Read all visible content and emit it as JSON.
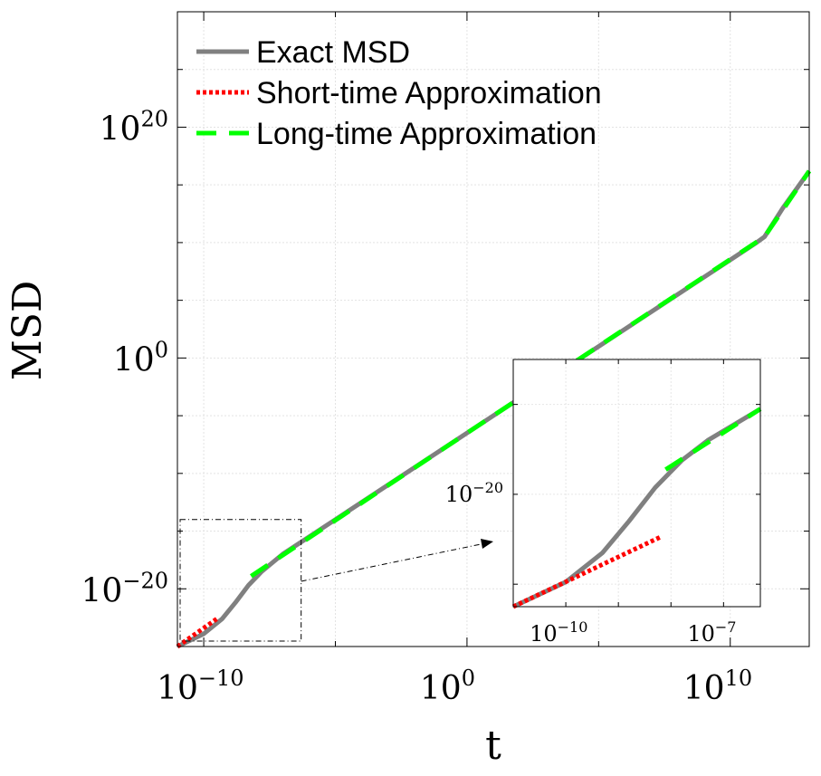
{
  "chart_data": {
    "type": "line",
    "xscale": "log",
    "yscale": "log",
    "xlabel": "t",
    "ylabel": "MSD",
    "xlim_exp": [
      -11,
      13
    ],
    "ylim_exp": [
      -25,
      30
    ],
    "x_tick_exps": [
      -10,
      0,
      10
    ],
    "y_tick_exps": [
      -20,
      0,
      20
    ],
    "x_tick_labels": [
      {
        "base": "10",
        "exp": "−10"
      },
      {
        "base": "10",
        "exp": "0"
      },
      {
        "base": "10",
        "exp": "10"
      }
    ],
    "y_tick_labels": [
      {
        "base": "10",
        "exp": "−20"
      },
      {
        "base": "10",
        "exp": "0"
      },
      {
        "base": "10",
        "exp": "20"
      }
    ],
    "grid": true,
    "legend_position": "top-left",
    "series": [
      {
        "name": "Exact MSD",
        "color": "#808080",
        "style": "solid",
        "points": [
          [
            -11,
            -25
          ],
          [
            -10,
            -23.9
          ],
          [
            -9.3,
            -22.6
          ],
          [
            -8.8,
            -21.2
          ],
          [
            -8.3,
            -19.7
          ],
          [
            -7.8,
            -18.5
          ],
          [
            -7,
            -17
          ],
          [
            -5,
            -14
          ],
          [
            0,
            -6.5
          ],
          [
            10,
            8.5
          ],
          [
            11,
            10
          ],
          [
            11.3,
            10.5
          ],
          [
            12,
            13
          ],
          [
            13,
            16.2
          ]
        ]
      },
      {
        "name": "Short-time Approximation",
        "color": "#ff0000",
        "style": "dotted",
        "points": [
          [
            -11,
            -25
          ],
          [
            -9.5,
            -22.6
          ]
        ]
      },
      {
        "name": "Long-time Approximation",
        "color": "#00ff00",
        "style": "dashed",
        "points": [
          [
            -8.2,
            -18.9
          ],
          [
            0,
            -6.5
          ],
          [
            11.3,
            10.5
          ],
          [
            13,
            16.2
          ]
        ]
      }
    ],
    "inset": {
      "xlim_exp": [
        -11,
        -6.3
      ],
      "ylim_exp": [
        -25,
        -14
      ],
      "x_tick_exps": [
        -10,
        -7
      ],
      "y_tick_exps": [
        -20
      ],
      "x_tick_labels": [
        {
          "base": "10",
          "exp": "−10"
        },
        {
          "base": "10",
          "exp": "−7"
        }
      ],
      "y_tick_labels": [
        {
          "base": "10",
          "exp": "−20"
        }
      ],
      "series": [
        {
          "name": "Exact MSD",
          "color": "#808080",
          "style": "solid",
          "points": [
            [
              -11,
              -25
            ],
            [
              -10,
              -23.9
            ],
            [
              -9.3,
              -22.6
            ],
            [
              -8.8,
              -21.2
            ],
            [
              -8.3,
              -19.7
            ],
            [
              -7.8,
              -18.5
            ],
            [
              -7.3,
              -17.6
            ],
            [
              -6.3,
              -16.2
            ]
          ]
        },
        {
          "name": "Short-time Approximation",
          "color": "#ff0000",
          "style": "dotted",
          "points": [
            [
              -11,
              -25
            ],
            [
              -8.2,
              -21.9
            ]
          ]
        },
        {
          "name": "Long-time Approximation",
          "color": "#00ff00",
          "style": "dashed",
          "points": [
            [
              -8.1,
              -18.9
            ],
            [
              -6.3,
              -16.2
            ]
          ]
        }
      ]
    },
    "zoom_region": {
      "x_exp": [
        -11,
        -6.3
      ],
      "y_exp": [
        -25,
        -14
      ]
    }
  }
}
